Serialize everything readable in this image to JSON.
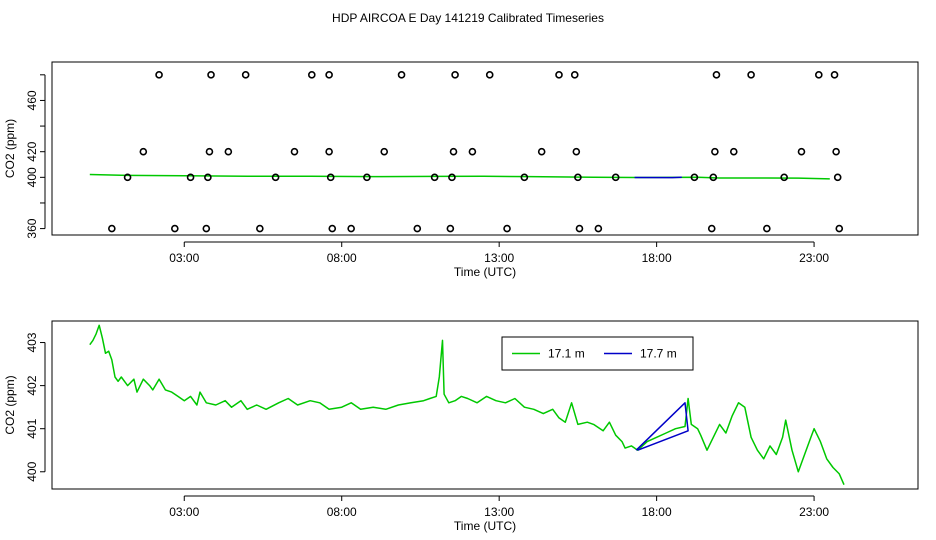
{
  "title": "HDP AIRCOA E  Day 141219  Calibrated Timeseries",
  "colors": {
    "green": "#00c800",
    "blue": "#0000c8",
    "axis": "#000000"
  },
  "chart_data": [
    {
      "type": "scatter",
      "xlabel": "Time (UTC)",
      "ylabel": "CO2 (ppm)",
      "xlim": [
        -1.2,
        26.3
      ],
      "ylim": [
        355,
        490
      ],
      "xticks": [
        3,
        8,
        13,
        18,
        23
      ],
      "xtick_labels": [
        "03:00",
        "08:00",
        "13:00",
        "18:00",
        "23:00"
      ],
      "yticks": [
        360,
        380,
        400,
        420,
        440,
        460,
        480
      ],
      "ytick_labels": [
        "360",
        "",
        "400",
        "420",
        "",
        "460",
        ""
      ],
      "markers": [
        {
          "x": 0.7,
          "y": 360
        },
        {
          "x": 1.2,
          "y": 400
        },
        {
          "x": 1.7,
          "y": 420
        },
        {
          "x": 2.2,
          "y": 480
        },
        {
          "x": 2.7,
          "y": 360
        },
        {
          "x": 3.2,
          "y": 400
        },
        {
          "x": 3.7,
          "y": 360
        },
        {
          "x": 3.75,
          "y": 400
        },
        {
          "x": 3.8,
          "y": 420
        },
        {
          "x": 3.85,
          "y": 480
        },
        {
          "x": 4.4,
          "y": 420
        },
        {
          "x": 4.95,
          "y": 480
        },
        {
          "x": 5.4,
          "y": 360
        },
        {
          "x": 5.9,
          "y": 400
        },
        {
          "x": 6.5,
          "y": 420
        },
        {
          "x": 7.05,
          "y": 480
        },
        {
          "x": 7.6,
          "y": 480
        },
        {
          "x": 7.6,
          "y": 420
        },
        {
          "x": 7.65,
          "y": 400
        },
        {
          "x": 7.7,
          "y": 360
        },
        {
          "x": 8.3,
          "y": 360
        },
        {
          "x": 8.8,
          "y": 400
        },
        {
          "x": 9.35,
          "y": 420
        },
        {
          "x": 9.9,
          "y": 480
        },
        {
          "x": 10.4,
          "y": 360
        },
        {
          "x": 10.95,
          "y": 400
        },
        {
          "x": 11.45,
          "y": 360
        },
        {
          "x": 11.5,
          "y": 400
        },
        {
          "x": 11.55,
          "y": 420
        },
        {
          "x": 11.6,
          "y": 480
        },
        {
          "x": 12.15,
          "y": 420
        },
        {
          "x": 12.7,
          "y": 480
        },
        {
          "x": 13.25,
          "y": 360
        },
        {
          "x": 13.8,
          "y": 400
        },
        {
          "x": 14.35,
          "y": 420
        },
        {
          "x": 14.9,
          "y": 480
        },
        {
          "x": 15.4,
          "y": 480
        },
        {
          "x": 15.45,
          "y": 420
        },
        {
          "x": 15.5,
          "y": 400
        },
        {
          "x": 15.55,
          "y": 360
        },
        {
          "x": 16.15,
          "y": 360
        },
        {
          "x": 16.7,
          "y": 400
        },
        {
          "x": 19.2,
          "y": 400
        },
        {
          "x": 19.75,
          "y": 360
        },
        {
          "x": 19.8,
          "y": 400
        },
        {
          "x": 19.85,
          "y": 420
        },
        {
          "x": 19.9,
          "y": 480
        },
        {
          "x": 20.45,
          "y": 420
        },
        {
          "x": 21.0,
          "y": 480
        },
        {
          "x": 21.5,
          "y": 360
        },
        {
          "x": 22.05,
          "y": 400
        },
        {
          "x": 22.6,
          "y": 420
        },
        {
          "x": 23.15,
          "y": 480
        },
        {
          "x": 23.65,
          "y": 480
        },
        {
          "x": 23.7,
          "y": 420
        },
        {
          "x": 23.75,
          "y": 400
        },
        {
          "x": 23.8,
          "y": 360
        }
      ],
      "series": [
        {
          "color": "#00c800",
          "points": [
            [
              0,
              402.2
            ],
            [
              1,
              401.6
            ],
            [
              3,
              401.3
            ],
            [
              5,
              400.8
            ],
            [
              7,
              400.9
            ],
            [
              9,
              400.6
            ],
            [
              11,
              400.7
            ],
            [
              12.5,
              400.8
            ],
            [
              14,
              400.6
            ],
            [
              16,
              400.1
            ],
            [
              17.5,
              399.9
            ],
            [
              19.3,
              400.0
            ],
            [
              20,
              399.5
            ],
            [
              21.5,
              399.5
            ],
            [
              22.5,
              399.4
            ],
            [
              23.5,
              398.8
            ]
          ]
        },
        {
          "color": "#0000c8",
          "points": [
            [
              17.3,
              399.9
            ],
            [
              18.5,
              399.8
            ],
            [
              18.8,
              400.1
            ]
          ]
        }
      ]
    },
    {
      "type": "line",
      "xlabel": "Time (UTC)",
      "ylabel": "CO2 (ppm)",
      "xlim": [
        -1.2,
        26.3
      ],
      "ylim": [
        399.6,
        403.5
      ],
      "xticks": [
        3,
        8,
        13,
        18,
        23
      ],
      "xtick_labels": [
        "03:00",
        "08:00",
        "13:00",
        "18:00",
        "23:00"
      ],
      "yticks": [
        400,
        401,
        402,
        403
      ],
      "ytick_labels": [
        "400",
        "401",
        "402",
        "403"
      ],
      "legend": {
        "placement": "top-center",
        "entries": [
          {
            "label": "17.1 m",
            "color": "#00c800"
          },
          {
            "label": "17.7 m",
            "color": "#0000c8"
          }
        ]
      },
      "series": [
        {
          "name": "17.1 m",
          "color": "#00c800",
          "points": [
            [
              0,
              402.95
            ],
            [
              0.1,
              403.05
            ],
            [
              0.2,
              403.2
            ],
            [
              0.3,
              403.4
            ],
            [
              0.4,
              403.1
            ],
            [
              0.5,
              402.75
            ],
            [
              0.6,
              402.8
            ],
            [
              0.7,
              402.6
            ],
            [
              0.8,
              402.2
            ],
            [
              0.9,
              402.1
            ],
            [
              1.0,
              402.2
            ],
            [
              1.2,
              402.0
            ],
            [
              1.4,
              402.15
            ],
            [
              1.5,
              401.85
            ],
            [
              1.7,
              402.15
            ],
            [
              1.9,
              402.0
            ],
            [
              2.0,
              401.9
            ],
            [
              2.2,
              402.15
            ],
            [
              2.4,
              401.9
            ],
            [
              2.6,
              401.85
            ],
            [
              2.8,
              401.75
            ],
            [
              3.0,
              401.65
            ],
            [
              3.2,
              401.75
            ],
            [
              3.4,
              401.55
            ],
            [
              3.5,
              401.85
            ],
            [
              3.7,
              401.6
            ],
            [
              4.0,
              401.55
            ],
            [
              4.3,
              401.65
            ],
            [
              4.5,
              401.5
            ],
            [
              4.8,
              401.65
            ],
            [
              5.0,
              401.45
            ],
            [
              5.3,
              401.55
            ],
            [
              5.6,
              401.45
            ],
            [
              6.0,
              401.6
            ],
            [
              6.3,
              401.7
            ],
            [
              6.6,
              401.55
            ],
            [
              7.0,
              401.65
            ],
            [
              7.3,
              401.6
            ],
            [
              7.6,
              401.45
            ],
            [
              8.0,
              401.5
            ],
            [
              8.3,
              401.6
            ],
            [
              8.6,
              401.45
            ],
            [
              9.0,
              401.5
            ],
            [
              9.4,
              401.45
            ],
            [
              9.8,
              401.55
            ],
            [
              10.2,
              401.6
            ],
            [
              10.6,
              401.65
            ],
            [
              10.8,
              401.7
            ],
            [
              11.0,
              401.75
            ],
            [
              11.1,
              402.2
            ],
            [
              11.2,
              403.05
            ],
            [
              11.25,
              401.8
            ],
            [
              11.4,
              401.6
            ],
            [
              11.6,
              401.65
            ],
            [
              11.8,
              401.75
            ],
            [
              12.0,
              401.7
            ],
            [
              12.3,
              401.6
            ],
            [
              12.6,
              401.75
            ],
            [
              12.9,
              401.65
            ],
            [
              13.2,
              401.6
            ],
            [
              13.5,
              401.7
            ],
            [
              13.8,
              401.5
            ],
            [
              14.1,
              401.45
            ],
            [
              14.4,
              401.35
            ],
            [
              14.7,
              401.45
            ],
            [
              14.9,
              401.25
            ],
            [
              15.1,
              401.15
            ],
            [
              15.3,
              401.6
            ],
            [
              15.5,
              401.1
            ],
            [
              15.8,
              401.15
            ],
            [
              16.0,
              401.1
            ],
            [
              16.3,
              400.95
            ],
            [
              16.5,
              401.15
            ],
            [
              16.7,
              400.85
            ],
            [
              16.9,
              400.7
            ],
            [
              17.0,
              400.55
            ],
            [
              17.2,
              400.6
            ],
            [
              17.4,
              400.5
            ],
            [
              17.7,
              400.7
            ],
            [
              18.0,
              400.8
            ],
            [
              18.3,
              400.9
            ],
            [
              18.6,
              401.0
            ],
            [
              18.9,
              401.05
            ],
            [
              19.0,
              401.7
            ],
            [
              19.1,
              401.1
            ],
            [
              19.3,
              401.0
            ],
            [
              19.4,
              400.85
            ],
            [
              19.6,
              400.5
            ],
            [
              19.8,
              400.8
            ],
            [
              20.0,
              401.1
            ],
            [
              20.2,
              400.9
            ],
            [
              20.4,
              401.3
            ],
            [
              20.6,
              401.6
            ],
            [
              20.8,
              401.5
            ],
            [
              21.0,
              400.8
            ],
            [
              21.2,
              400.5
            ],
            [
              21.4,
              400.3
            ],
            [
              21.6,
              400.6
            ],
            [
              21.8,
              400.4
            ],
            [
              22.0,
              400.8
            ],
            [
              22.1,
              401.2
            ],
            [
              22.3,
              400.5
            ],
            [
              22.5,
              400.0
            ],
            [
              22.7,
              400.4
            ],
            [
              22.9,
              400.8
            ],
            [
              23.0,
              401.0
            ],
            [
              23.2,
              400.7
            ],
            [
              23.4,
              400.3
            ],
            [
              23.6,
              400.1
            ],
            [
              23.8,
              399.95
            ],
            [
              23.95,
              399.7
            ]
          ]
        },
        {
          "name": "17.7 m",
          "color": "#0000c8",
          "points": [
            [
              17.35,
              400.5
            ],
            [
              18.9,
              401.6
            ],
            [
              19.0,
              400.95
            ],
            [
              17.4,
              400.5
            ]
          ]
        }
      ]
    }
  ]
}
